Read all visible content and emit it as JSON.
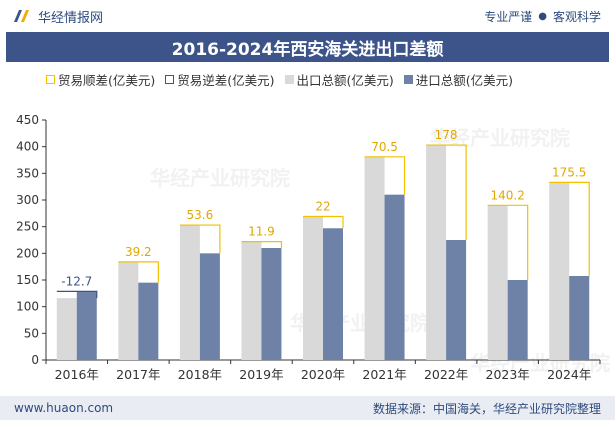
{
  "header": {
    "brand": "华经情报网",
    "tagline_left": "专业严谨",
    "tagline_right": "客观科学"
  },
  "title": "2016-2024年西安海关进出口差额",
  "footer": {
    "url": "www.huaon.com",
    "source": "数据来源：中国海关，华经产业研究院整理"
  },
  "watermark": "华经产业研究院",
  "colors": {
    "export": "#d9d9d9",
    "import": "#6e82a8",
    "surplus": "#f2c200",
    "deficit": "#3c5489",
    "title_bg": "#3c5489"
  },
  "chart_data": {
    "type": "bar",
    "categories": [
      "2016年",
      "2017年",
      "2018年",
      "2019年",
      "2020年",
      "2021年",
      "2022年",
      "2023年",
      "2024年"
    ],
    "series": [
      {
        "name": "出口总额(亿美元)",
        "values": [
          116,
          184,
          253,
          222,
          269,
          381,
          403,
          290,
          333
        ]
      },
      {
        "name": "进口总额(亿美元)",
        "values": [
          128.7,
          145,
          200,
          210,
          247,
          310,
          225,
          150,
          157.5
        ]
      }
    ],
    "trade_balance": {
      "names": {
        "surplus": "贸易顺差(亿美元)",
        "deficit": "贸易逆差(亿美元)"
      },
      "labels": [
        "-12.7",
        "39.2",
        "53.6",
        "11.9",
        "22",
        "70.5",
        "178",
        "140.2",
        "175.5"
      ],
      "values": [
        -12.7,
        39.2,
        53.6,
        11.9,
        22,
        70.5,
        178,
        140.2,
        175.5
      ]
    },
    "yticks": [
      "0",
      "50",
      "100",
      "150",
      "200",
      "250",
      "300",
      "350",
      "400",
      "450"
    ],
    "ylim": [
      0,
      450
    ],
    "grid": false,
    "legend": "top"
  }
}
